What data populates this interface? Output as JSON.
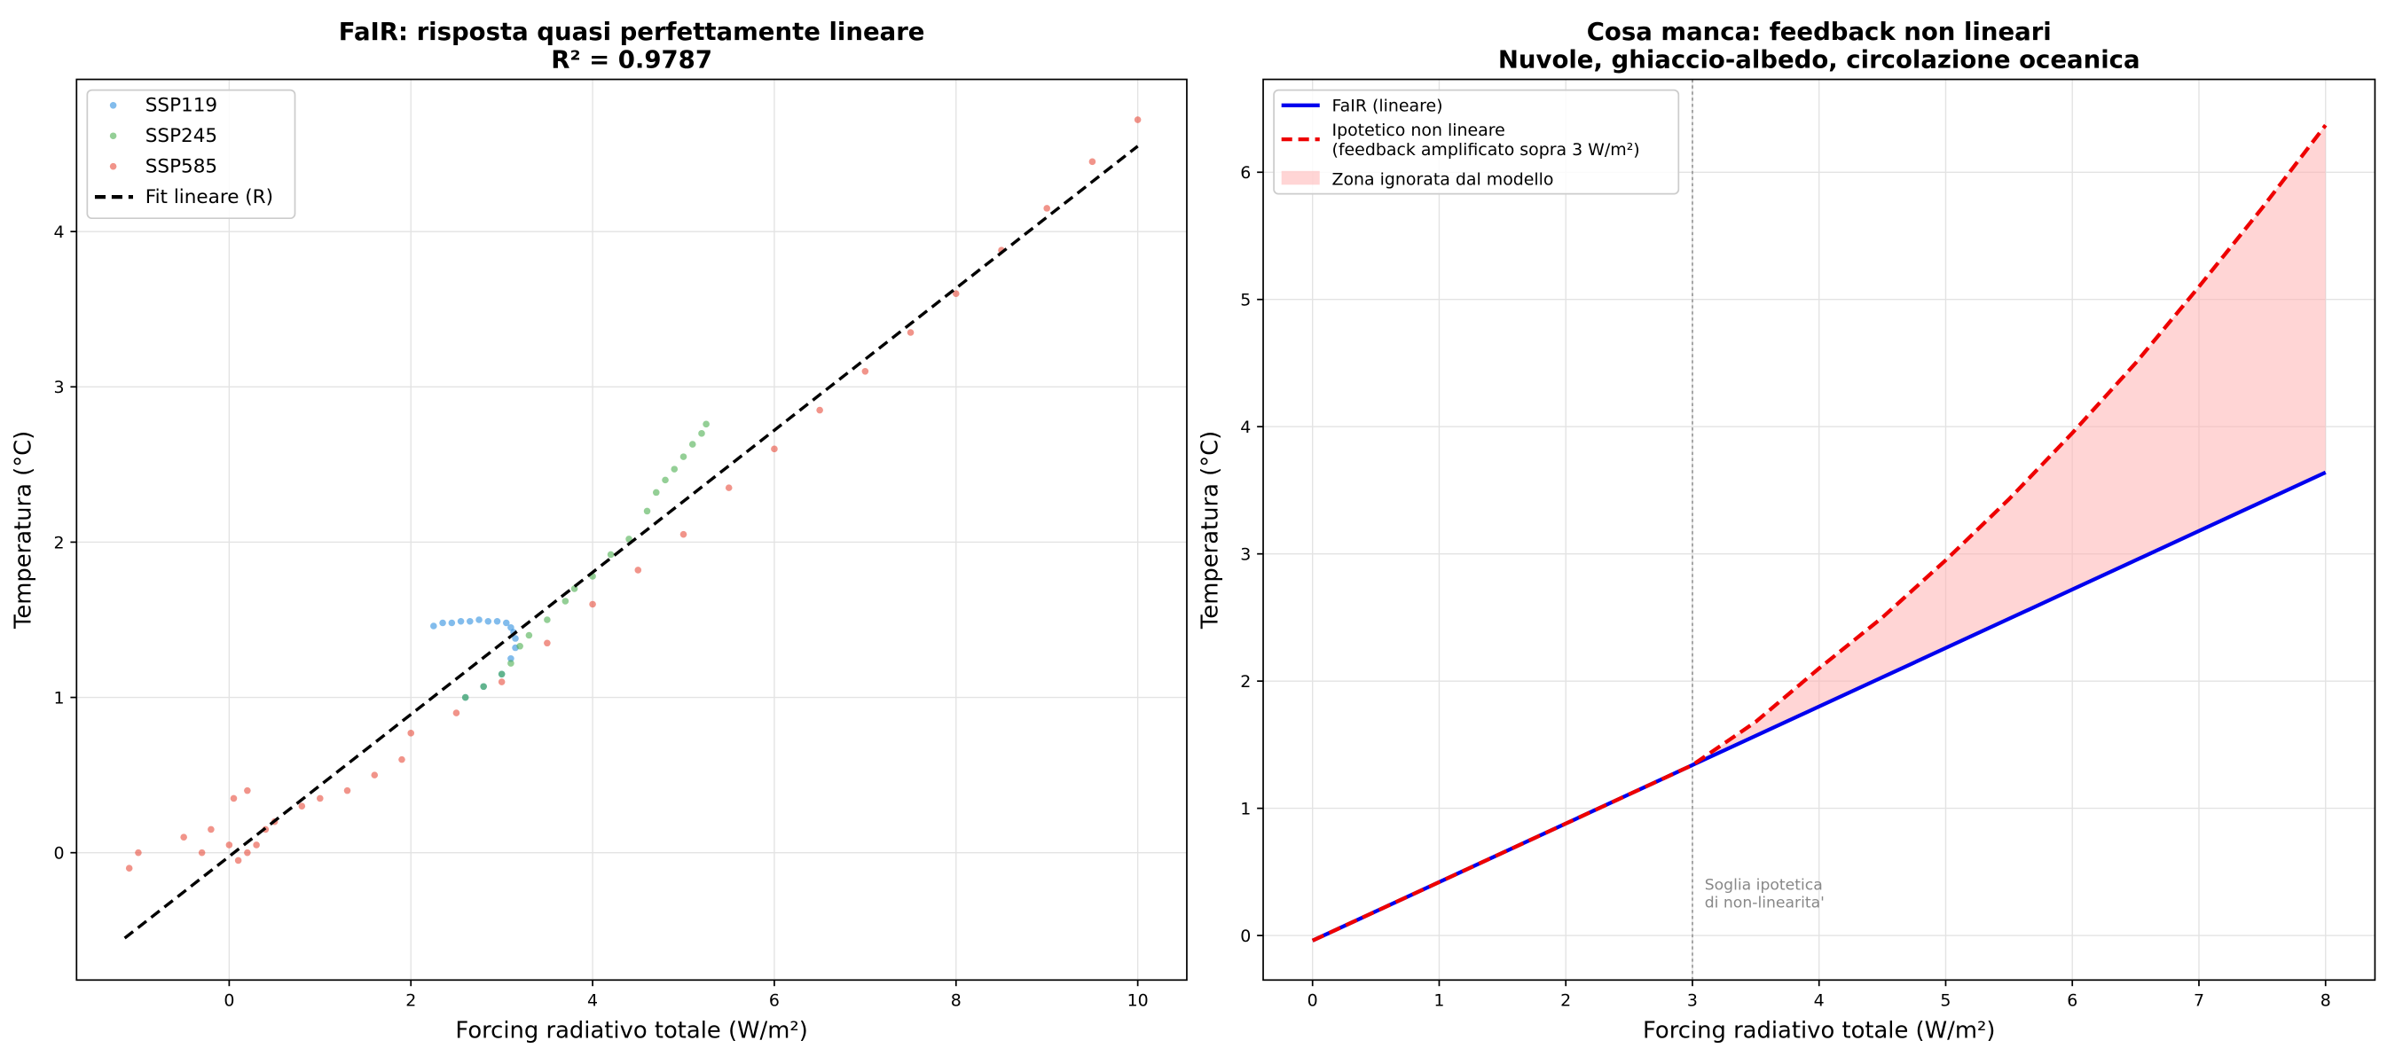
{
  "chart_data": [
    {
      "type": "scatter",
      "title": "FaIR: risposta quasi perfettamente lineare\nR² = 0.9787",
      "xlabel": "Forcing radiativo totale (W/m²)",
      "ylabel": "Temperatura (°C)",
      "xlim": [
        -1.68,
        10.54
      ],
      "ylim": [
        -0.82,
        4.98
      ],
      "xticks": [
        0,
        2,
        4,
        6,
        8,
        10
      ],
      "yticks": [
        0,
        1,
        2,
        3,
        4
      ],
      "grid": true,
      "legend": "upper left",
      "series": [
        {
          "name": "SSP119",
          "color": "#2e8fe0",
          "x": [
            2.25,
            2.35,
            2.45,
            2.55,
            2.65,
            2.75,
            2.85,
            2.95,
            3.05,
            3.1,
            3.13,
            3.15,
            2.6,
            2.8,
            3.0,
            3.1,
            3.15
          ],
          "y": [
            1.46,
            1.48,
            1.48,
            1.49,
            1.49,
            1.5,
            1.49,
            1.49,
            1.48,
            1.45,
            1.42,
            1.38,
            1.0,
            1.07,
            1.15,
            1.25,
            1.32
          ]
        },
        {
          "name": "SSP245",
          "color": "#4caf50",
          "x": [
            2.6,
            2.8,
            3.0,
            3.1,
            3.2,
            3.3,
            3.5,
            3.7,
            3.8,
            4.0,
            4.2,
            4.4,
            4.6,
            4.7,
            4.8,
            4.9,
            5.0,
            5.1,
            5.2,
            5.25
          ],
          "y": [
            1.0,
            1.07,
            1.15,
            1.22,
            1.33,
            1.4,
            1.5,
            1.62,
            1.7,
            1.78,
            1.92,
            2.02,
            2.2,
            2.32,
            2.4,
            2.47,
            2.55,
            2.63,
            2.7,
            2.76
          ]
        },
        {
          "name": "SSP585",
          "color": "#e74c3c",
          "x": [
            -1.1,
            -1.0,
            -0.5,
            -0.3,
            -0.2,
            0.0,
            0.05,
            0.2,
            0.1,
            0.2,
            0.3,
            0.4,
            0.5,
            0.8,
            1.0,
            1.3,
            1.6,
            1.9,
            2.0,
            2.5,
            3.0,
            3.5,
            4.0,
            4.5,
            5.0,
            5.5,
            6.0,
            6.5,
            7.0,
            7.5,
            8.0,
            8.5,
            9.0,
            9.5,
            10.0
          ],
          "y": [
            -0.1,
            0.0,
            0.1,
            0.0,
            0.15,
            0.05,
            0.35,
            0.4,
            -0.05,
            0.0,
            0.05,
            0.15,
            0.2,
            0.3,
            0.35,
            0.4,
            0.5,
            0.6,
            0.77,
            0.9,
            1.1,
            1.35,
            1.6,
            1.82,
            2.05,
            2.35,
            2.6,
            2.85,
            3.1,
            3.35,
            3.6,
            3.88,
            4.15,
            4.45,
            4.72
          ]
        },
        {
          "name": "Fit lineare (R)",
          "type": "line",
          "dash": true,
          "color": "#000000",
          "x": [
            -1.15,
            10.0
          ],
          "y": [
            -0.55,
            4.55
          ]
        }
      ]
    },
    {
      "type": "line",
      "title": "Cosa manca: feedback non lineari\nNuvole, ghiaccio-albedo, circolazione oceanica",
      "xlabel": "Forcing radiativo totale (W/m²)",
      "ylabel": "Temperatura (°C)",
      "xlim": [
        -0.39,
        8.39
      ],
      "ylim": [
        -0.35,
        6.73
      ],
      "xticks": [
        0,
        1,
        2,
        3,
        4,
        5,
        6,
        7,
        8
      ],
      "yticks": [
        0,
        1,
        2,
        3,
        4,
        5,
        6
      ],
      "grid": true,
      "legend": "upper left",
      "x": [
        0,
        0.5,
        1,
        1.5,
        2,
        2.5,
        3,
        3.5,
        4,
        4.5,
        5,
        5.5,
        6,
        6.5,
        7,
        7.5,
        8
      ],
      "series": [
        {
          "name": "FaIR (lineare)",
          "color": "#0000ee",
          "values": [
            -0.04,
            0.19,
            0.42,
            0.65,
            0.88,
            1.11,
            1.34,
            1.57,
            1.8,
            2.03,
            2.26,
            2.49,
            2.72,
            2.95,
            3.18,
            3.41,
            3.64
          ]
        },
        {
          "name": "Ipotetico non lineare\n(feedback amplificato sopra 3 W/m²)",
          "color": "#ee0000",
          "dash": true,
          "values": [
            -0.04,
            0.19,
            0.42,
            0.65,
            0.88,
            1.11,
            1.34,
            1.68,
            2.1,
            2.5,
            2.95,
            3.43,
            3.95,
            4.5,
            5.1,
            5.72,
            6.37
          ]
        }
      ],
      "fill": {
        "name": "Zona ignorata dal modello",
        "color": "#ffb3b3"
      },
      "threshold": 3,
      "annotation": "Soglia ipotetica\ndi non-linearita'"
    }
  ]
}
